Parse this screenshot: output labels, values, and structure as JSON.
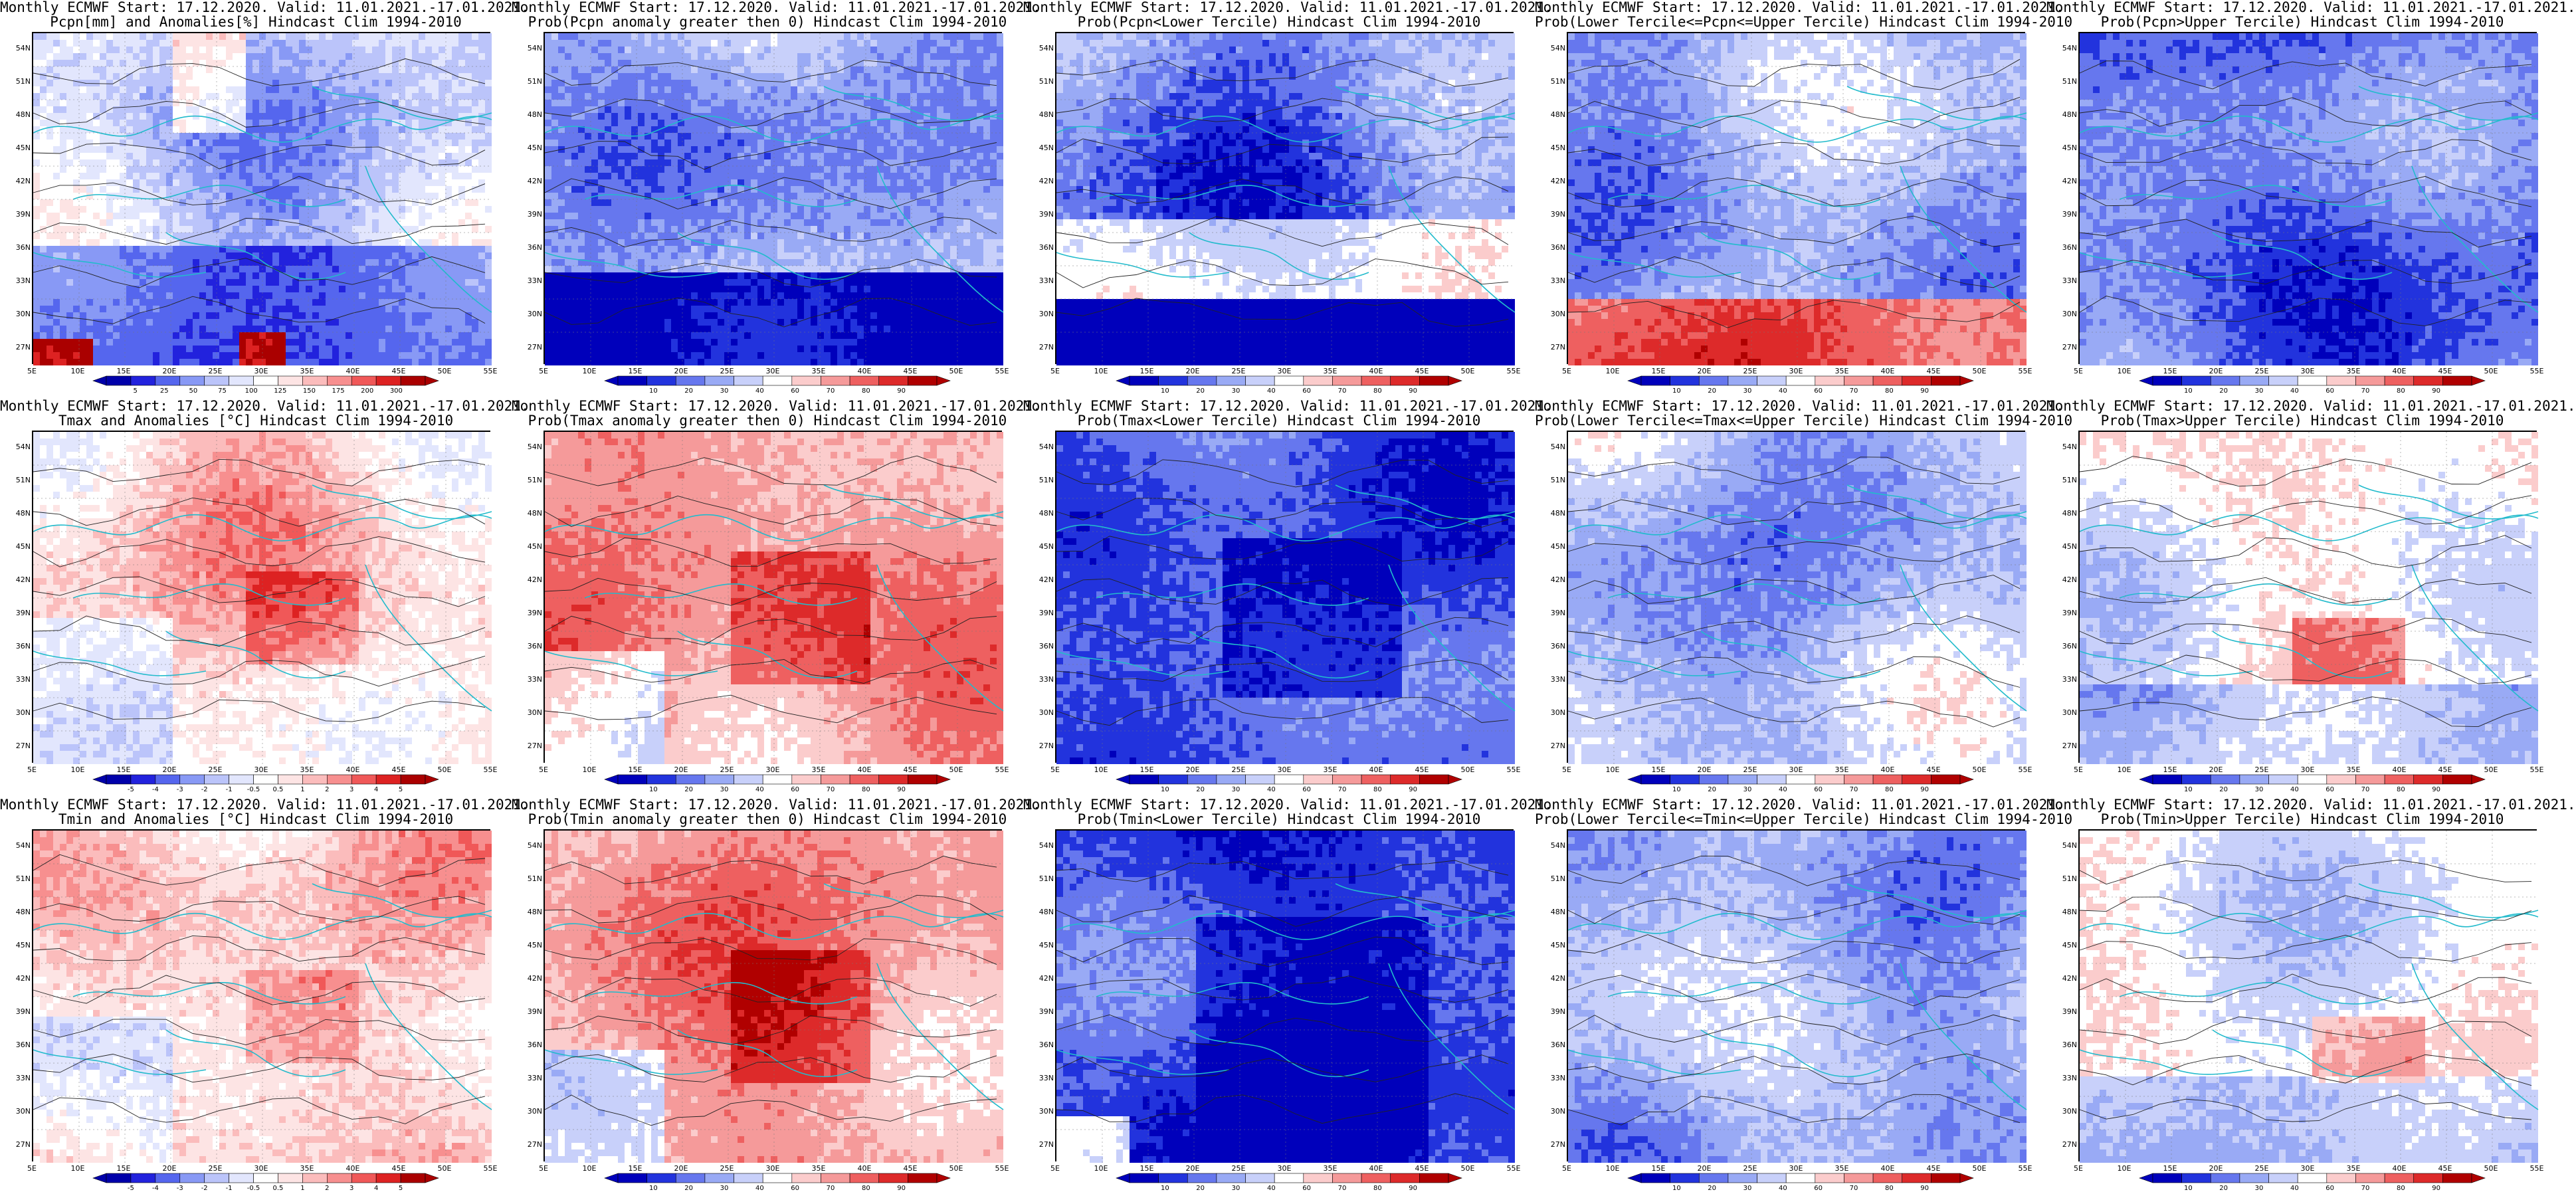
{
  "lat_ticks": [
    "54N",
    "51N",
    "48N",
    "45N",
    "42N",
    "39N",
    "36N",
    "33N",
    "30N",
    "27N"
  ],
  "lon_ticks": [
    "5E",
    "10E",
    "15E",
    "20E",
    "25E",
    "30E",
    "35E",
    "40E",
    "45E",
    "50E",
    "55E"
  ],
  "palettes": {
    "anom": [
      "#0000aa",
      "#2222dd",
      "#5566ee",
      "#8899f5",
      "#bbc4fa",
      "#e2e6fd",
      "#ffffff",
      "#fde4e4",
      "#fbbcbc",
      "#f78f8f",
      "#f05858",
      "#dd2222",
      "#aa0000"
    ],
    "prob": [
      "#0000bb",
      "#2233dd",
      "#6677ee",
      "#99aaf5",
      "#c8d0fa",
      "#ffffff",
      "#fbcccc",
      "#f59a9a",
      "#ee6060",
      "#dd2a2a",
      "#b00000"
    ]
  },
  "panels": [
    {
      "line1": "Monthly ECMWF Start: 17.12.2020. Valid: 11.01.2021.-17.01.2021.",
      "line2": "Pcpn[mm] and Anomalies[%] Hindcast Clim 1994-2010",
      "scheme": "pcpn-anom",
      "palette": "anom",
      "cbar_labels": [
        "5",
        "25",
        "50",
        "75",
        "100",
        "125",
        "150",
        "175",
        "200",
        "300"
      ]
    },
    {
      "line1": "Monthly ECMWF Start: 17.12.2020. Valid: 11.01.2021.-17.01.2021.",
      "line2": "Prob(Pcpn anomaly greater then 0) Hindcast Clim 1994-2010",
      "scheme": "pcpn-prob-gt0",
      "palette": "prob",
      "cbar_labels": [
        "10",
        "20",
        "30",
        "40",
        "60",
        "70",
        "80",
        "90"
      ]
    },
    {
      "line1": "Monthly ECMWF Start: 17.12.2020. Valid: 11.01.2021.-17.01.2021.",
      "line2": "Prob(Pcpn<Lower Tercile) Hindcast Clim 1994-2010",
      "scheme": "pcpn-lower",
      "palette": "prob",
      "cbar_labels": [
        "10",
        "20",
        "30",
        "40",
        "60",
        "70",
        "80",
        "90"
      ]
    },
    {
      "line1": "Monthly ECMWF Start: 17.12.2020. Valid: 11.01.2021.-17.01.2021.",
      "line2": "Prob(Lower Tercile<=Pcpn<=Upper Tercile) Hindcast Clim 1994-2010",
      "scheme": "pcpn-middle",
      "palette": "prob",
      "cbar_labels": [
        "10",
        "20",
        "30",
        "40",
        "60",
        "70",
        "80",
        "90"
      ]
    },
    {
      "line1": "Monthly ECMWF Start: 17.12.2020. Valid: 11.01.2021.-17.01.2021.",
      "line2": "Prob(Pcpn>Upper Tercile) Hindcast Clim 1994-2010",
      "scheme": "pcpn-upper",
      "palette": "prob",
      "cbar_labels": [
        "10",
        "20",
        "30",
        "40",
        "60",
        "70",
        "80",
        "90"
      ]
    },
    {
      "line1": "Monthly ECMWF Start: 17.12.2020. Valid: 11.01.2021.-17.01.2021.",
      "line2": "Tmax and Anomalies [°C] Hindcast Clim 1994-2010",
      "scheme": "t-anom",
      "palette": "anom",
      "cbar_labels": [
        "-5",
        "-4",
        "-3",
        "-2",
        "-1",
        "-0.5",
        "0.5",
        "1",
        "2",
        "3",
        "4",
        "5"
      ]
    },
    {
      "line1": "Monthly ECMWF Start: 17.12.2020. Valid: 11.01.2021.-17.01.2021.",
      "line2": "Prob(Tmax anomaly greater then 0) Hindcast Clim 1994-2010",
      "scheme": "t-prob-gt0",
      "palette": "prob",
      "cbar_labels": [
        "10",
        "20",
        "30",
        "40",
        "60",
        "70",
        "80",
        "90"
      ]
    },
    {
      "line1": "Monthly ECMWF Start: 17.12.2020. Valid: 11.01.2021.-17.01.2021.",
      "line2": "Prob(Tmax<Lower Tercile) Hindcast Clim 1994-2010",
      "scheme": "t-lower",
      "palette": "prob",
      "cbar_labels": [
        "10",
        "20",
        "30",
        "40",
        "60",
        "70",
        "80",
        "90"
      ]
    },
    {
      "line1": "Monthly ECMWF Start: 17.12.2020. Valid: 11.01.2021.-17.01.2021.",
      "line2": "Prob(Lower Tercile<=Tmax<=Upper Tercile) Hindcast Clim 1994-2010",
      "scheme": "t-middle",
      "palette": "prob",
      "cbar_labels": [
        "10",
        "20",
        "30",
        "40",
        "60",
        "70",
        "80",
        "90"
      ]
    },
    {
      "line1": "Monthly ECMWF Start: 17.12.2020. Valid: 11.01.2021.-17.01.2021.",
      "line2": "Prob(Tmax>Upper Tercile) Hindcast Clim 1994-2010",
      "scheme": "t-upper",
      "palette": "prob",
      "cbar_labels": [
        "10",
        "20",
        "30",
        "40",
        "60",
        "70",
        "80",
        "90"
      ]
    },
    {
      "line1": "Monthly ECMWF Start: 17.12.2020. Valid: 11.01.2021.-17.01.2021.",
      "line2": "Tmin and Anomalies [°C] Hindcast Clim 1994-2010",
      "scheme": "t-anom",
      "palette": "anom",
      "cbar_labels": [
        "-5",
        "-4",
        "-3",
        "-2",
        "-1",
        "-0.5",
        "0.5",
        "1",
        "2",
        "3",
        "4",
        "5"
      ]
    },
    {
      "line1": "Monthly ECMWF Start: 17.12.2020. Valid: 11.01.2021.-17.01.2021.",
      "line2": "Prob(Tmin anomaly greater then 0) Hindcast Clim 1994-2010",
      "scheme": "t-prob-gt0",
      "palette": "prob",
      "cbar_labels": [
        "10",
        "20",
        "30",
        "40",
        "60",
        "70",
        "80",
        "90"
      ]
    },
    {
      "line1": "Monthly ECMWF Start: 17.12.2020. Valid: 11.01.2021.-17.01.2021.",
      "line2": "Prob(Tmin<Lower Tercile) Hindcast Clim 1994-2010",
      "scheme": "t-lower-strong",
      "palette": "prob",
      "cbar_labels": [
        "10",
        "20",
        "30",
        "40",
        "60",
        "70",
        "80",
        "90"
      ]
    },
    {
      "line1": "Monthly ECMWF Start: 17.12.2020. Valid: 11.01.2021.-17.01.2021.",
      "line2": "Prob(Lower Tercile<=Tmin<=Upper Tercile) Hindcast Clim 1994-2010",
      "scheme": "t-middle",
      "palette": "prob",
      "cbar_labels": [
        "10",
        "20",
        "30",
        "40",
        "60",
        "70",
        "80",
        "90"
      ]
    },
    {
      "line1": "Monthly ECMWF Start: 17.12.2020. Valid: 11.01.2021.-17.01.2021.",
      "line2": "Prob(Tmin>Upper Tercile) Hindcast Clim 1994-2010",
      "scheme": "t-upper-weak",
      "palette": "prob",
      "cbar_labels": [
        "10",
        "20",
        "30",
        "40",
        "60",
        "70",
        "80",
        "90"
      ]
    }
  ]
}
